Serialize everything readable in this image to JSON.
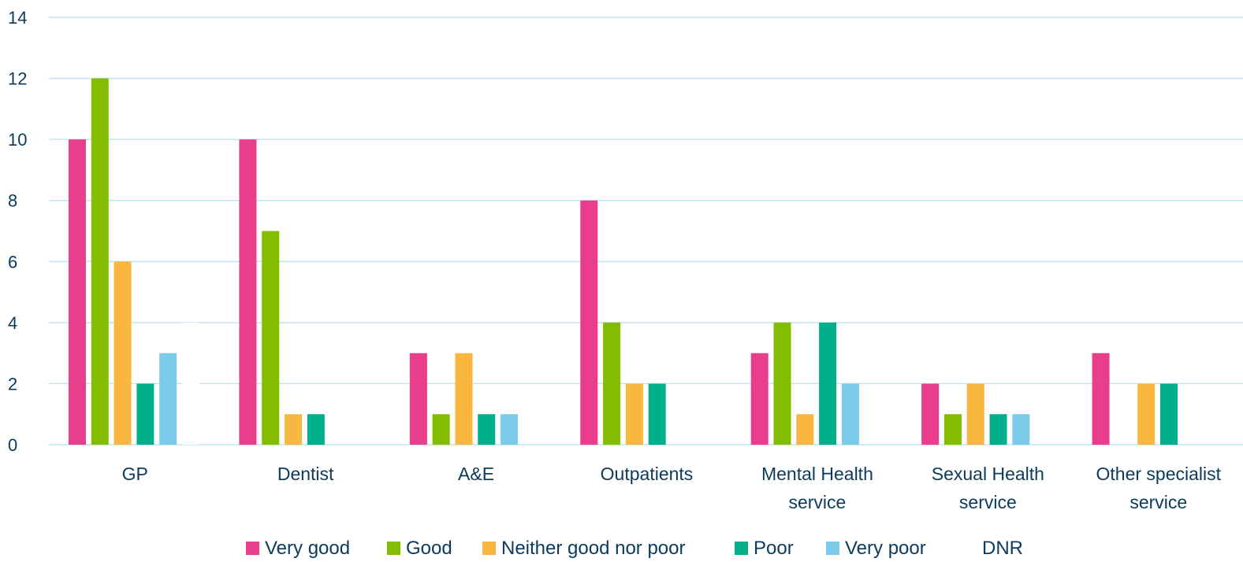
{
  "chart_data": {
    "type": "bar",
    "categories": [
      [
        "GP"
      ],
      [
        "Dentist"
      ],
      [
        "A&E"
      ],
      [
        "Outpatients"
      ],
      [
        "Mental Health",
        "service"
      ],
      [
        "Sexual Health",
        "service"
      ],
      [
        "Other specialist",
        "service"
      ]
    ],
    "series": [
      {
        "name": "Very good",
        "color": "#e83e8c",
        "values": [
          10,
          10,
          3,
          8,
          3,
          2,
          3
        ]
      },
      {
        "name": "Good",
        "color": "#84bd00",
        "values": [
          12,
          7,
          1,
          4,
          4,
          1,
          0
        ]
      },
      {
        "name": "Neither good nor poor",
        "color": "#f9b73f",
        "values": [
          6,
          1,
          3,
          2,
          1,
          2,
          2
        ]
      },
      {
        "name": "Poor",
        "color": "#00b08b",
        "values": [
          2,
          1,
          1,
          2,
          4,
          1,
          2
        ]
      },
      {
        "name": "Very poor",
        "color": "#7ccbeb",
        "values": [
          3,
          0,
          1,
          0,
          2,
          1,
          0
        ]
      },
      {
        "name": "DNR",
        "color": "#ffffff",
        "values": [
          4,
          0,
          0,
          0,
          0,
          0,
          0
        ]
      }
    ],
    "yticks": [
      "0",
      "2",
      "4",
      "6",
      "8",
      "10",
      "12",
      "14"
    ],
    "ylim": [
      0,
      14
    ],
    "grid": true,
    "legend_position": "bottom"
  }
}
